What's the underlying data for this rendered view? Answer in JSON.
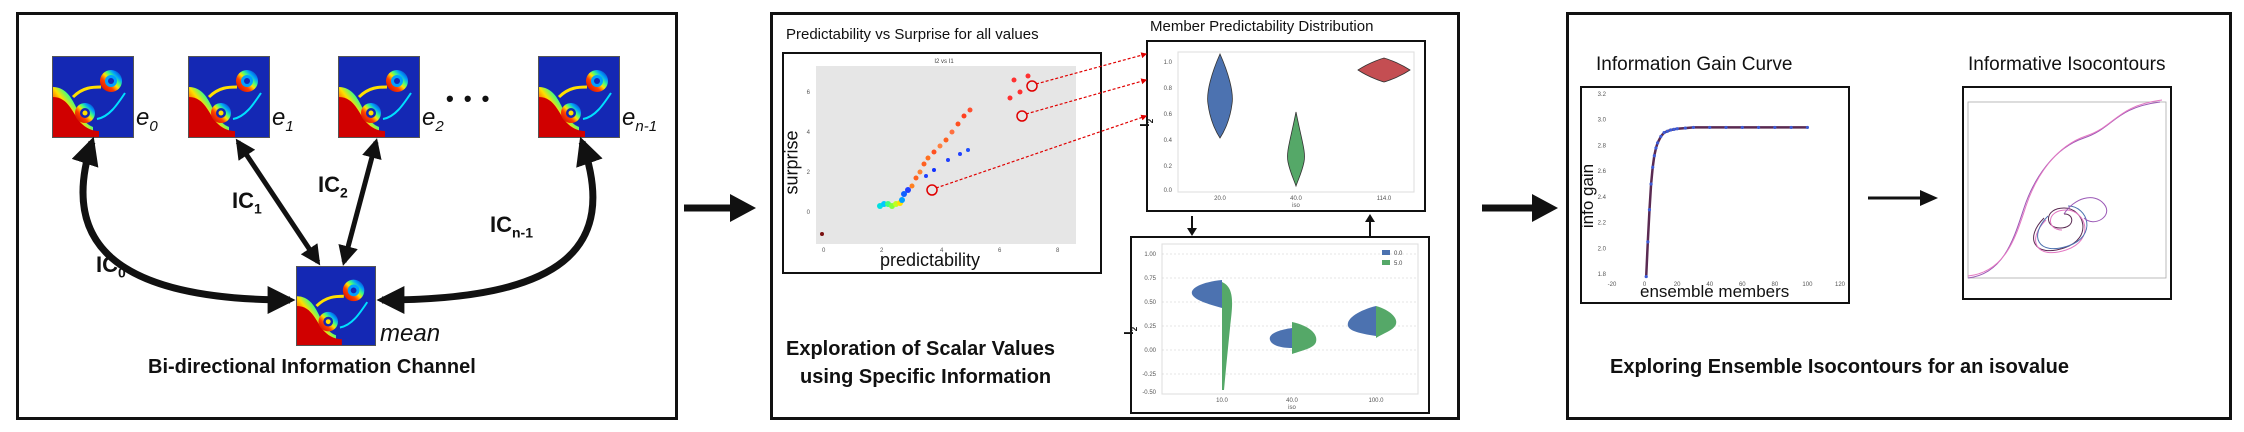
{
  "left": {
    "members": [
      {
        "base": "e",
        "sub": "0"
      },
      {
        "base": "e",
        "sub": "1"
      },
      {
        "base": "e",
        "sub": "2"
      },
      {
        "base": "e",
        "sub": "n-1"
      }
    ],
    "ellipsis": "• • •",
    "mean_label": "mean",
    "channels": [
      {
        "base": "IC",
        "sub": "0"
      },
      {
        "base": "IC",
        "sub": "1"
      },
      {
        "base": "IC",
        "sub": "2"
      },
      {
        "base": "IC",
        "sub": "n-1"
      }
    ],
    "caption": "Bi-directional Information Channel"
  },
  "middle": {
    "scatter_title": "Predictability vs Surprise for all values",
    "scatter_inner_title": "I2 vs I1",
    "scatter_xlabel": "predictability",
    "scatter_ylabel": "surprise",
    "violin_title": "Member Predictability Distribution",
    "violin_ylabel_base": "I",
    "violin_ylabel_sub": "2",
    "violin_xaxis": "iso",
    "violin_cats": [
      "20.0",
      "40.0",
      "114.0"
    ],
    "violin_yticks": [
      "1.0",
      "0.8",
      "0.6",
      "0.4",
      "0.2",
      "0.0"
    ],
    "split_cats": [
      "10.0",
      "40.0",
      "100.0"
    ],
    "split_yticks": [
      "1.00",
      "0.75",
      "0.50",
      "0.25",
      "0.00",
      "-0.25",
      "-0.50"
    ],
    "split_legend": [
      "0.0",
      "5.0"
    ],
    "caption_line1": "Exploration of Scalar Values",
    "caption_line2": "using Specific Information"
  },
  "right": {
    "curve_title": "Information Gain Curve",
    "curve_ylabel": "info gain",
    "curve_xlabel": "ensemble members",
    "curve_xticks": [
      "-20",
      "0",
      "20",
      "40",
      "60",
      "80",
      "100",
      "120"
    ],
    "curve_yticks": [
      "3.2",
      "3.0",
      "2.8",
      "2.6",
      "2.4",
      "2.2",
      "2.0",
      "1.8"
    ],
    "iso_title": "Informative Isocontours",
    "caption": "Exploring Ensemble Isocontours for an isovalue"
  },
  "colors": {
    "frame": "#111111",
    "violin_blue": "#4c72b0",
    "violin_green": "#55a868",
    "violin_red": "#c44e52",
    "link_red": "#e00000",
    "curve_line": "#5a2a52",
    "curve_points": "#3d5bd6"
  },
  "chart_data": [
    {
      "type": "line",
      "title": "Information Gain Curve",
      "xlabel": "ensemble members",
      "ylabel": "info gain",
      "xlim": [
        -20,
        120
      ],
      "ylim": [
        1.8,
        3.2
      ],
      "x": [
        1,
        2,
        3,
        4,
        5,
        6,
        7,
        8,
        10,
        12,
        14,
        16,
        18,
        20,
        25,
        30,
        40,
        50,
        60,
        70,
        80,
        90,
        100
      ],
      "y": [
        1.78,
        2.05,
        2.3,
        2.5,
        2.63,
        2.72,
        2.78,
        2.82,
        2.87,
        2.9,
        2.91,
        2.92,
        2.925,
        2.93,
        2.935,
        2.94,
        2.94,
        2.94,
        2.94,
        2.94,
        2.94,
        2.94,
        2.94
      ]
    },
    {
      "type": "violin",
      "title": "Member Predictability Distribution",
      "categories": [
        "20.0",
        "40.0",
        "114.0"
      ],
      "centers": [
        0.82,
        0.25,
        0.94
      ],
      "ylim": [
        0.0,
        1.0
      ]
    }
  ]
}
